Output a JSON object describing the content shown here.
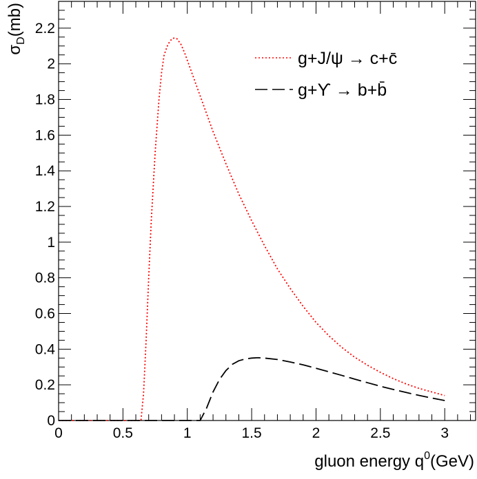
{
  "chart_data": {
    "type": "line",
    "title": "",
    "xlabel": "gluon energy q",
    "xlabel_sup": "0",
    "xlabel_unit": "(GeV)",
    "ylabel_sym": "σ",
    "ylabel_sub": "D",
    "ylabel_unit": "(mb)",
    "xlim": [
      0,
      3.24
    ],
    "ylim": [
      0,
      2.35
    ],
    "x_ticks": [
      {
        "v": 0,
        "label": "0"
      },
      {
        "v": 0.5,
        "label": "0.5"
      },
      {
        "v": 1,
        "label": "1"
      },
      {
        "v": 1.5,
        "label": "1.5"
      },
      {
        "v": 2,
        "label": "2"
      },
      {
        "v": 2.5,
        "label": "2.5"
      },
      {
        "v": 3,
        "label": "3"
      }
    ],
    "y_ticks": [
      {
        "v": 0,
        "label": "0"
      },
      {
        "v": 0.2,
        "label": "0.2"
      },
      {
        "v": 0.4,
        "label": "0.4"
      },
      {
        "v": 0.6,
        "label": "0.6"
      },
      {
        "v": 0.8,
        "label": "0.8"
      },
      {
        "v": 1,
        "label": "1"
      },
      {
        "v": 1.2,
        "label": "1.2"
      },
      {
        "v": 1.4,
        "label": "1.4"
      },
      {
        "v": 1.6,
        "label": "1.6"
      },
      {
        "v": 1.8,
        "label": "1.8"
      },
      {
        "v": 2,
        "label": "2"
      },
      {
        "v": 2.2,
        "label": "2.2"
      }
    ],
    "legend_position": "top-right",
    "series": [
      {
        "name": "g+J/ψ → c+c̄",
        "color": "#ff0000",
        "dash": "dotted",
        "x": [
          0,
          0.64,
          0.66,
          0.68,
          0.7,
          0.72,
          0.75,
          0.78,
          0.8,
          0.82,
          0.85,
          0.88,
          0.9,
          0.92,
          0.95,
          0.98,
          1.0,
          1.05,
          1.1,
          1.15,
          1.2,
          1.3,
          1.4,
          1.5,
          1.6,
          1.7,
          1.8,
          1.9,
          2.0,
          2.1,
          2.2,
          2.3,
          2.4,
          2.5,
          2.6,
          2.7,
          2.8,
          2.9,
          3.0
        ],
        "y": [
          0,
          0,
          0.15,
          0.45,
          0.8,
          1.12,
          1.5,
          1.8,
          1.95,
          2.05,
          2.11,
          2.14,
          2.145,
          2.14,
          2.11,
          2.06,
          2.02,
          1.92,
          1.82,
          1.72,
          1.62,
          1.44,
          1.27,
          1.12,
          0.98,
          0.85,
          0.74,
          0.64,
          0.55,
          0.475,
          0.41,
          0.355,
          0.31,
          0.27,
          0.235,
          0.205,
          0.18,
          0.16,
          0.14
        ]
      },
      {
        "name": "g+ϒ → b+b̄",
        "color": "#000000",
        "dash": "dashed",
        "x": [
          0,
          1.1,
          1.15,
          1.2,
          1.25,
          1.3,
          1.35,
          1.4,
          1.45,
          1.5,
          1.55,
          1.6,
          1.7,
          1.8,
          1.9,
          2.0,
          2.1,
          2.2,
          2.3,
          2.4,
          2.5,
          2.6,
          2.7,
          2.8,
          2.9,
          3.0
        ],
        "y": [
          0,
          0,
          0.07,
          0.16,
          0.23,
          0.28,
          0.315,
          0.335,
          0.345,
          0.35,
          0.352,
          0.35,
          0.342,
          0.328,
          0.312,
          0.293,
          0.273,
          0.253,
          0.232,
          0.212,
          0.192,
          0.174,
          0.157,
          0.141,
          0.126,
          0.112
        ]
      }
    ]
  }
}
